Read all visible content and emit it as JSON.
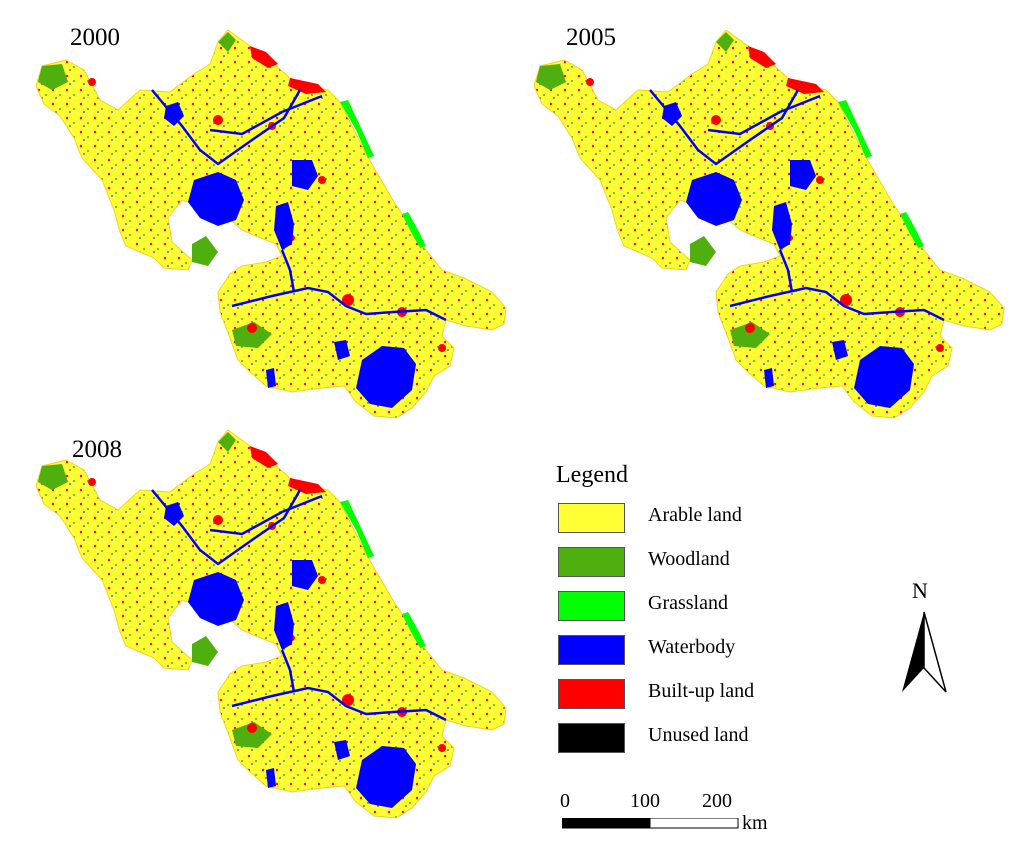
{
  "maps": [
    {
      "year": "2000"
    },
    {
      "year": "2005"
    },
    {
      "year": "2008"
    }
  ],
  "legend": {
    "title": "Legend",
    "items": [
      {
        "label": "Arable land",
        "color": "#FFFF33"
      },
      {
        "label": "Woodland",
        "color": "#4FAF0F"
      },
      {
        "label": "Grassland",
        "color": "#00FF00"
      },
      {
        "label": "Waterbody",
        "color": "#0000FF"
      },
      {
        "label": "Built-up land",
        "color": "#FF0000"
      },
      {
        "label": "Unused land",
        "color": "#000000"
      }
    ]
  },
  "north_arrow": {
    "label": "N"
  },
  "scale_bar": {
    "ticks": [
      "0",
      "100",
      "200"
    ],
    "unit": "km"
  },
  "colors": {
    "arable_base": "#F2D31F",
    "arable_light": "#FFFF33",
    "woodland": "#4FAF0F",
    "grassland": "#00FF00",
    "water": "#0000FF",
    "builtup": "#FF0000"
  }
}
